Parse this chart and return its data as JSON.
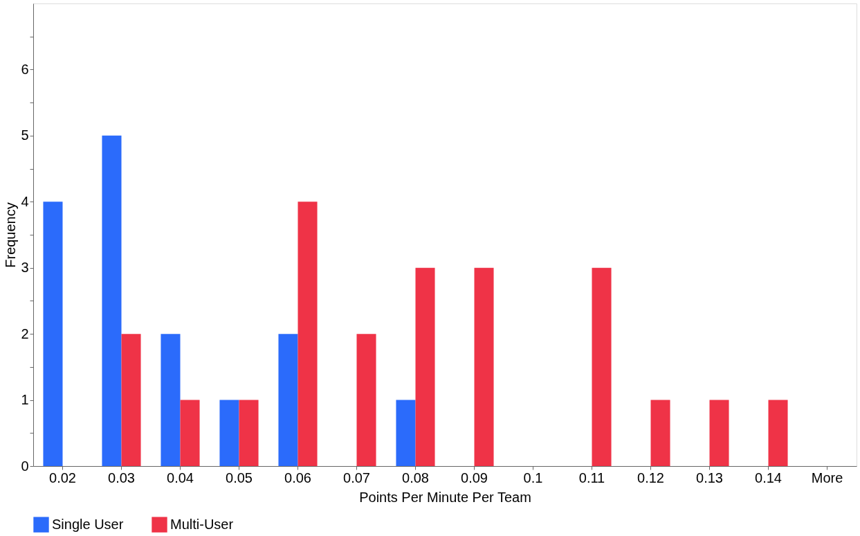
{
  "chart_data": {
    "type": "bar",
    "xlabel": "Points Per Minute Per Team",
    "ylabel": "Frequency",
    "categories": [
      "0.02",
      "0.03",
      "0.04",
      "0.05",
      "0.06",
      "0.07",
      "0.08",
      "0.09",
      "0.1",
      "0.11",
      "0.12",
      "0.13",
      "0.14",
      "More"
    ],
    "series": [
      {
        "name": "Single User",
        "color": "#2b6bfb",
        "values": [
          4,
          5,
          2,
          1,
          2,
          0,
          1,
          0,
          0,
          0,
          0,
          0,
          0,
          0
        ]
      },
      {
        "name": "Multi-User",
        "color": "#ef3347",
        "values": [
          0,
          2,
          1,
          1,
          4,
          2,
          3,
          3,
          0,
          3,
          1,
          1,
          1,
          0
        ]
      }
    ],
    "ylim": [
      0,
      7
    ],
    "yticks": [
      0,
      {
        "value": 0.5,
        "label": null
      },
      1,
      {
        "value": 1.5,
        "label": null
      },
      2,
      {
        "value": 2.5,
        "label": null
      },
      3,
      {
        "value": 3.5,
        "label": null
      },
      4,
      {
        "value": 4.5,
        "label": null
      },
      5,
      {
        "value": 5.5,
        "label": null
      },
      6,
      {
        "value": 6.5,
        "label": null
      }
    ],
    "grid": false,
    "legend": "bottom"
  }
}
